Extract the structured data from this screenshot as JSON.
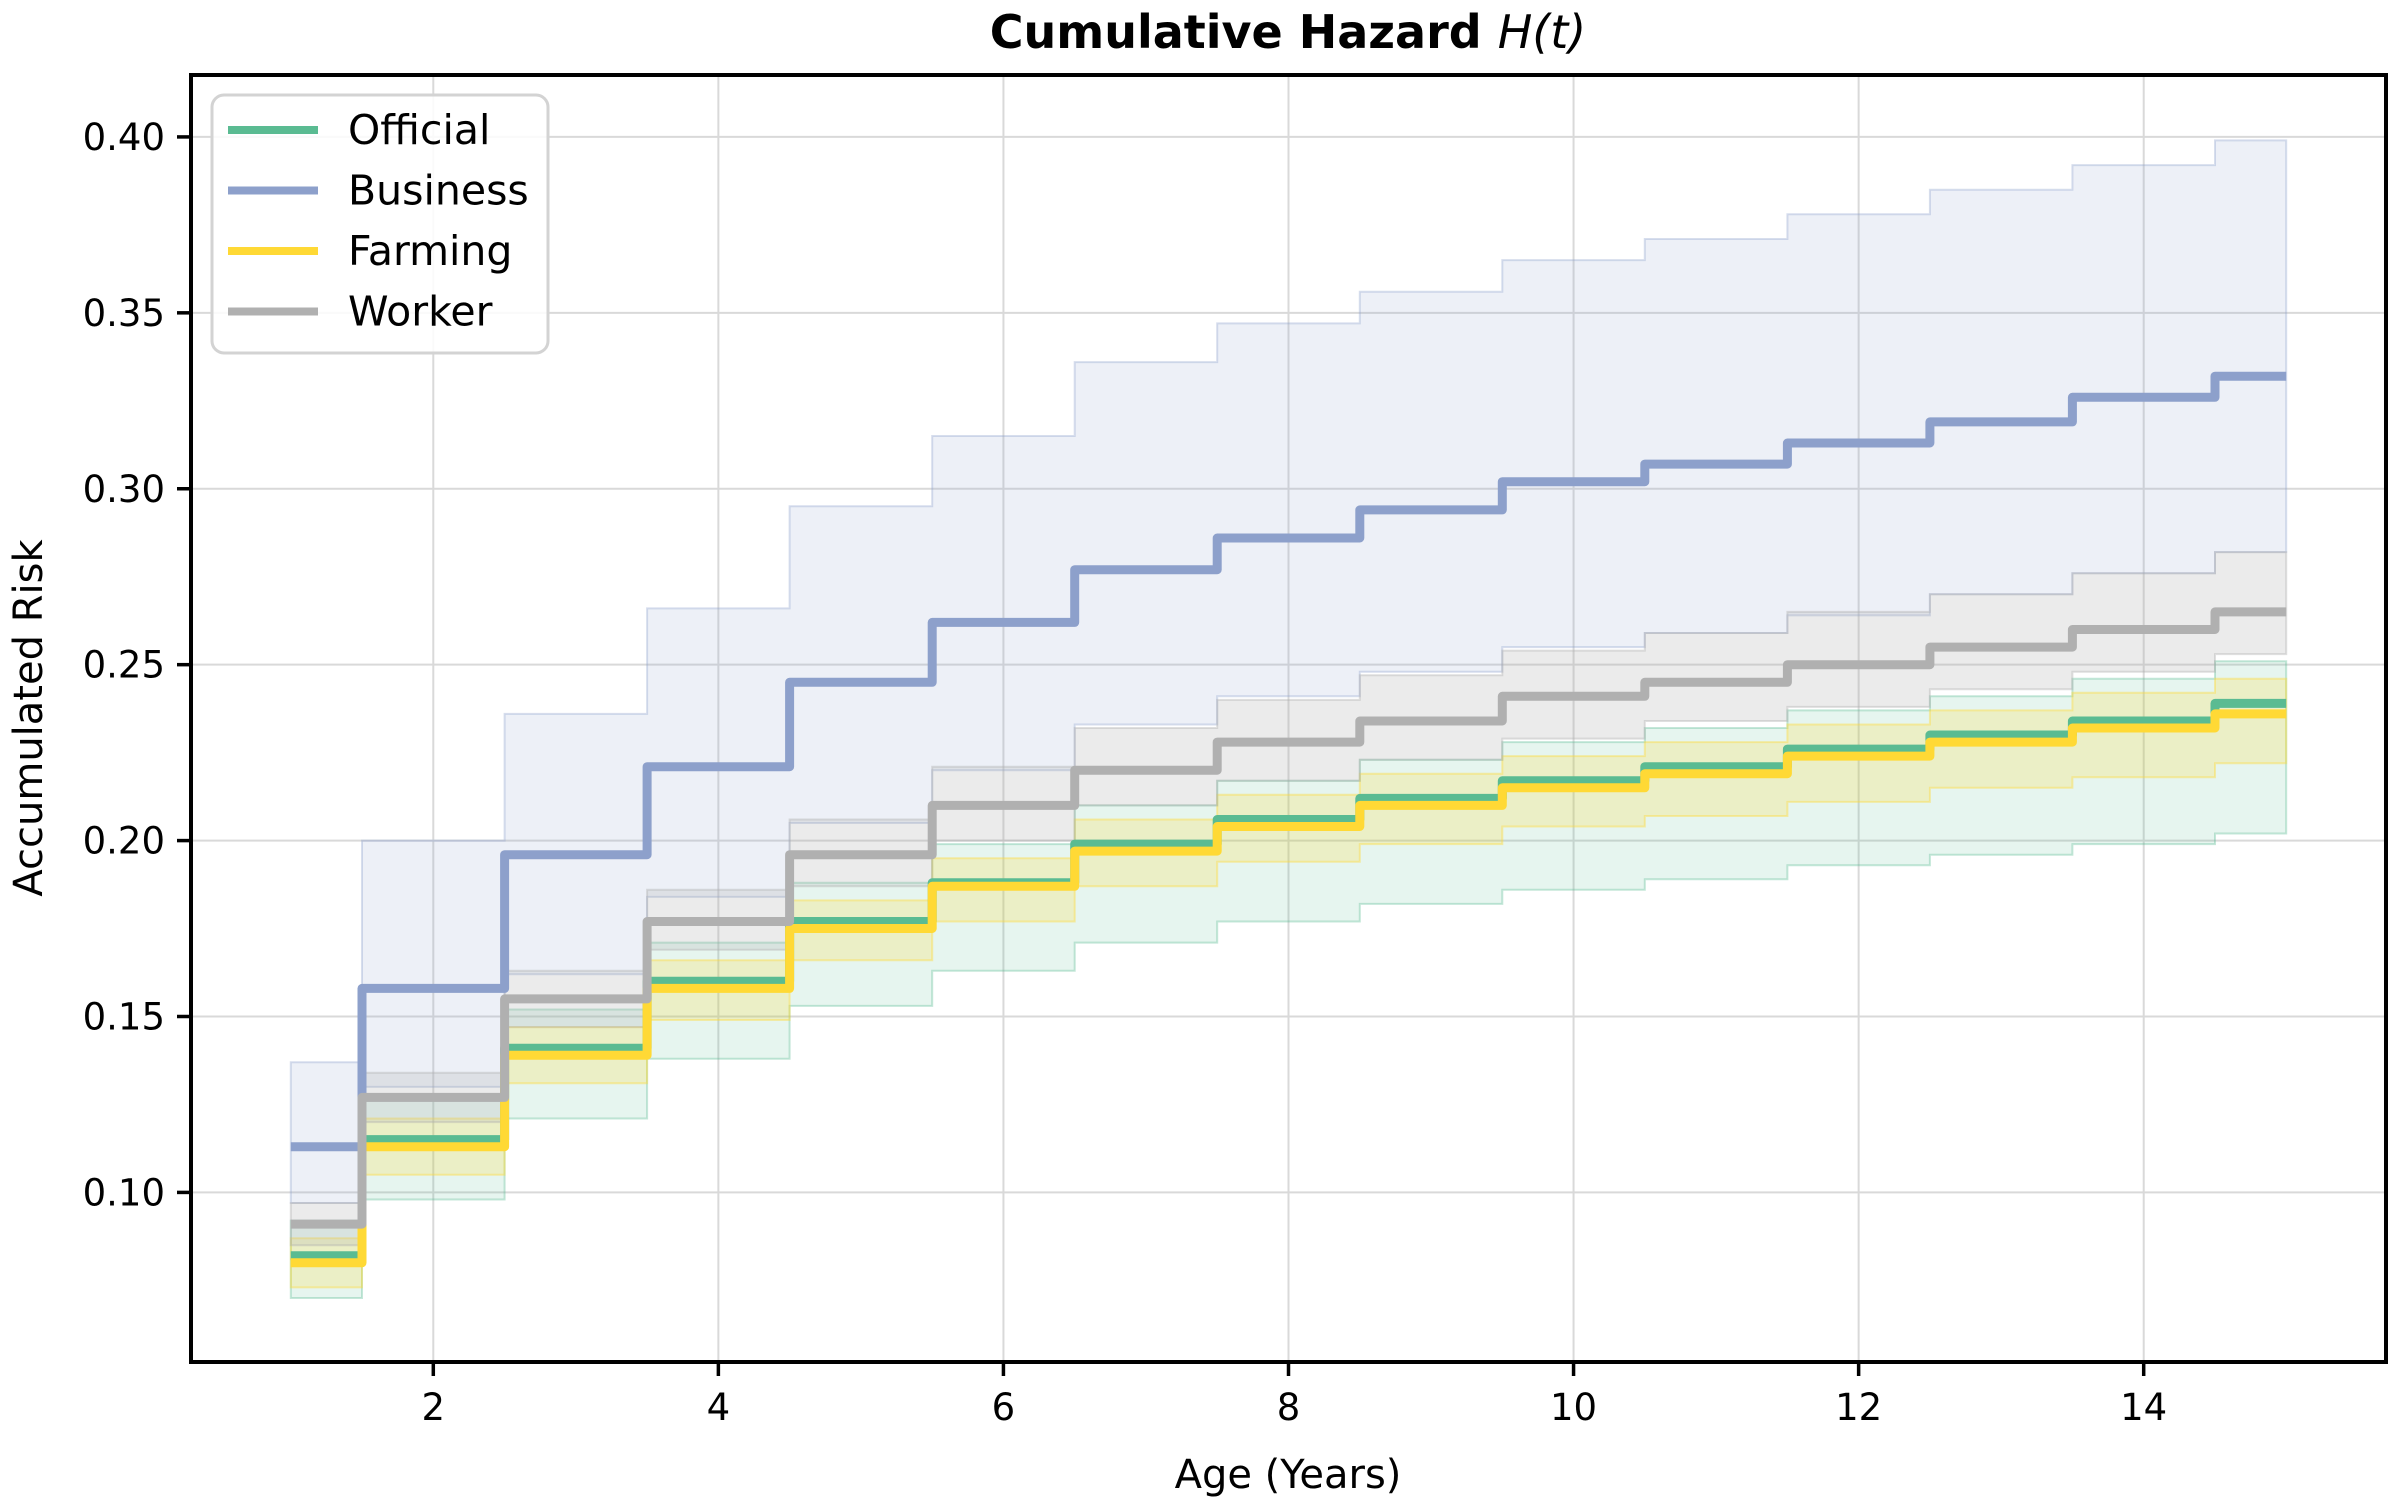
{
  "figure": {
    "title_main": "Cumulative Hazard ",
    "title_math": "H(t)",
    "xlabel": "Age (Years)",
    "ylabel": "Accumulated Risk",
    "background": "#ffffff",
    "grid_color": "#d9d9d9",
    "spine_color": "#000000"
  },
  "legend": {
    "position": "upper-left",
    "entries": [
      "Official",
      "Business",
      "Farming",
      "Worker"
    ]
  },
  "chart_data": {
    "type": "line",
    "subtype": "step-cumulative-hazard-with-ci-bands",
    "title": "Cumulative Hazard H(t)",
    "xlabel": "Age (Years)",
    "ylabel": "Accumulated Risk",
    "grid": true,
    "legend_position": "upper-left",
    "x_ticks": [
      2,
      4,
      6,
      8,
      10,
      12,
      14
    ],
    "y_ticks": [
      0.1,
      0.15,
      0.2,
      0.25,
      0.3,
      0.35,
      0.4
    ],
    "xlim": [
      0.3,
      15.7
    ],
    "ylim": [
      0.0518,
      0.4176
    ],
    "x_boundaries": [
      1,
      1.5,
      2.5,
      3.5,
      4.5,
      5.5,
      6.5,
      7.5,
      8.5,
      9.5,
      10.5,
      11.5,
      12.5,
      13.5,
      14.5,
      15
    ],
    "series": [
      {
        "name": "Official",
        "color": "#5abb92",
        "fill_alpha": 0.15,
        "edge_alpha": 0.35,
        "values": [
          0.082,
          0.115,
          0.141,
          0.16,
          0.177,
          0.188,
          0.199,
          0.206,
          0.212,
          0.217,
          0.221,
          0.226,
          0.23,
          0.234,
          0.239
        ],
        "ci_upper": [
          0.092,
          0.126,
          0.152,
          0.171,
          0.188,
          0.199,
          0.21,
          0.217,
          0.223,
          0.228,
          0.232,
          0.237,
          0.241,
          0.246,
          0.251
        ],
        "ci_lower": [
          0.07,
          0.098,
          0.121,
          0.138,
          0.153,
          0.163,
          0.171,
          0.177,
          0.182,
          0.186,
          0.189,
          0.193,
          0.196,
          0.199,
          0.202
        ]
      },
      {
        "name": "Business",
        "color": "#8da0cb",
        "fill_alpha": 0.16,
        "edge_alpha": 0.35,
        "values": [
          0.113,
          0.158,
          0.196,
          0.221,
          0.245,
          0.262,
          0.277,
          0.286,
          0.294,
          0.302,
          0.307,
          0.313,
          0.319,
          0.326,
          0.332
        ],
        "ci_upper": [
          0.137,
          0.2,
          0.236,
          0.266,
          0.295,
          0.315,
          0.336,
          0.347,
          0.356,
          0.365,
          0.371,
          0.378,
          0.385,
          0.392,
          0.399
        ],
        "ci_lower": [
          0.097,
          0.13,
          0.162,
          0.184,
          0.205,
          0.22,
          0.233,
          0.241,
          0.248,
          0.255,
          0.259,
          0.264,
          0.27,
          0.276,
          0.282
        ]
      },
      {
        "name": "Farming",
        "color": "#ffd935",
        "fill_alpha": 0.22,
        "edge_alpha": 0.4,
        "values": [
          0.08,
          0.113,
          0.139,
          0.158,
          0.175,
          0.187,
          0.197,
          0.204,
          0.21,
          0.215,
          0.219,
          0.224,
          0.228,
          0.232,
          0.236
        ],
        "ci_upper": [
          0.087,
          0.121,
          0.147,
          0.166,
          0.183,
          0.195,
          0.206,
          0.213,
          0.219,
          0.224,
          0.228,
          0.233,
          0.237,
          0.242,
          0.246
        ],
        "ci_lower": [
          0.073,
          0.105,
          0.131,
          0.149,
          0.166,
          0.177,
          0.187,
          0.194,
          0.199,
          0.204,
          0.207,
          0.211,
          0.215,
          0.218,
          0.222
        ]
      },
      {
        "name": "Worker",
        "color": "#b0b0b0",
        "fill_alpha": 0.25,
        "edge_alpha": 0.4,
        "values": [
          0.091,
          0.127,
          0.155,
          0.177,
          0.196,
          0.21,
          0.22,
          0.228,
          0.234,
          0.241,
          0.245,
          0.25,
          0.255,
          0.26,
          0.265
        ],
        "ci_upper": [
          0.097,
          0.134,
          0.163,
          0.186,
          0.206,
          0.221,
          0.232,
          0.24,
          0.247,
          0.254,
          0.259,
          0.265,
          0.27,
          0.276,
          0.282
        ],
        "ci_lower": [
          0.085,
          0.12,
          0.147,
          0.169,
          0.187,
          0.2,
          0.21,
          0.217,
          0.223,
          0.229,
          0.234,
          0.238,
          0.243,
          0.248,
          0.253
        ]
      }
    ]
  }
}
